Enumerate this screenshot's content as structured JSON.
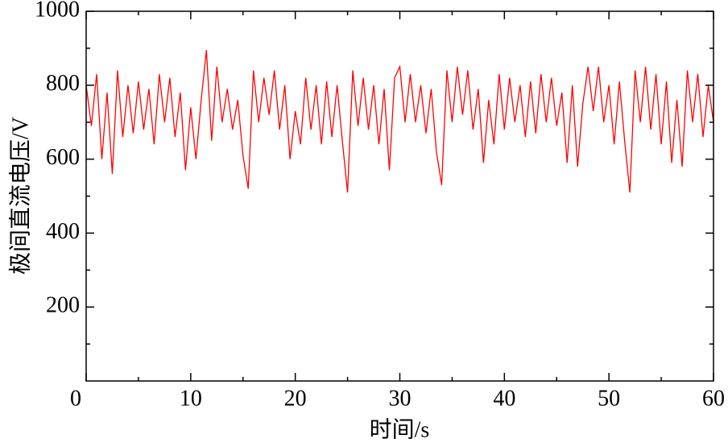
{
  "chart_data": {
    "type": "line",
    "x_label": "时间/s",
    "y_label": "极间直流电压/V",
    "x": [
      0,
      0.5,
      1,
      1.5,
      2,
      2.5,
      3,
      3.5,
      4,
      4.5,
      5,
      5.5,
      6,
      6.5,
      7,
      7.5,
      8,
      8.5,
      9,
      9.5,
      10,
      10.5,
      11,
      11.5,
      12,
      12.5,
      13,
      13.5,
      14,
      14.5,
      15,
      15.5,
      16,
      16.5,
      17,
      17.5,
      18,
      18.5,
      19,
      19.5,
      20,
      20.5,
      21,
      21.5,
      22,
      22.5,
      23,
      23.5,
      24,
      24.5,
      25,
      25.5,
      26,
      26.5,
      27,
      27.5,
      28,
      28.5,
      29,
      29.5,
      30,
      30.5,
      31,
      31.5,
      32,
      32.5,
      33,
      33.5,
      34,
      34.5,
      35,
      35.5,
      36,
      36.5,
      37,
      37.5,
      38,
      38.5,
      39,
      39.5,
      40,
      40.5,
      41,
      41.5,
      42,
      42.5,
      43,
      43.5,
      44,
      44.5,
      45,
      45.5,
      46,
      46.5,
      47,
      47.5,
      48,
      48.5,
      49,
      49.5,
      50,
      50.5,
      51,
      51.5,
      52,
      52.5,
      53,
      53.5,
      54,
      54.5,
      55,
      55.5,
      56,
      56.5,
      57,
      57.5,
      58,
      58.5,
      59,
      59.5,
      60
    ],
    "values": [
      800,
      690,
      830,
      600,
      780,
      560,
      840,
      660,
      800,
      670,
      810,
      680,
      790,
      640,
      830,
      700,
      820,
      660,
      780,
      570,
      740,
      600,
      760,
      895,
      650,
      850,
      700,
      790,
      680,
      760,
      610,
      520,
      840,
      700,
      820,
      720,
      840,
      680,
      800,
      600,
      730,
      640,
      820,
      680,
      800,
      640,
      810,
      660,
      800,
      650,
      510,
      840,
      690,
      820,
      680,
      800,
      640,
      790,
      570,
      820,
      850,
      700,
      830,
      700,
      800,
      670,
      790,
      620,
      530,
      840,
      700,
      850,
      720,
      840,
      680,
      790,
      590,
      760,
      640,
      830,
      680,
      820,
      700,
      800,
      660,
      810,
      670,
      830,
      700,
      820,
      690,
      780,
      590,
      800,
      580,
      750,
      850,
      730,
      850,
      700,
      800,
      640,
      810,
      650,
      510,
      840,
      700,
      850,
      680,
      830,
      640,
      810,
      590,
      760,
      580,
      840,
      700,
      830,
      660,
      800,
      700
    ],
    "color": "#ff0000",
    "xlim": [
      0,
      60
    ],
    "xticks": [
      0,
      10,
      20,
      30,
      40,
      50,
      60
    ],
    "ylim": [
      0,
      1000
    ],
    "yticks": [
      200,
      400,
      600,
      800,
      1000
    ]
  }
}
